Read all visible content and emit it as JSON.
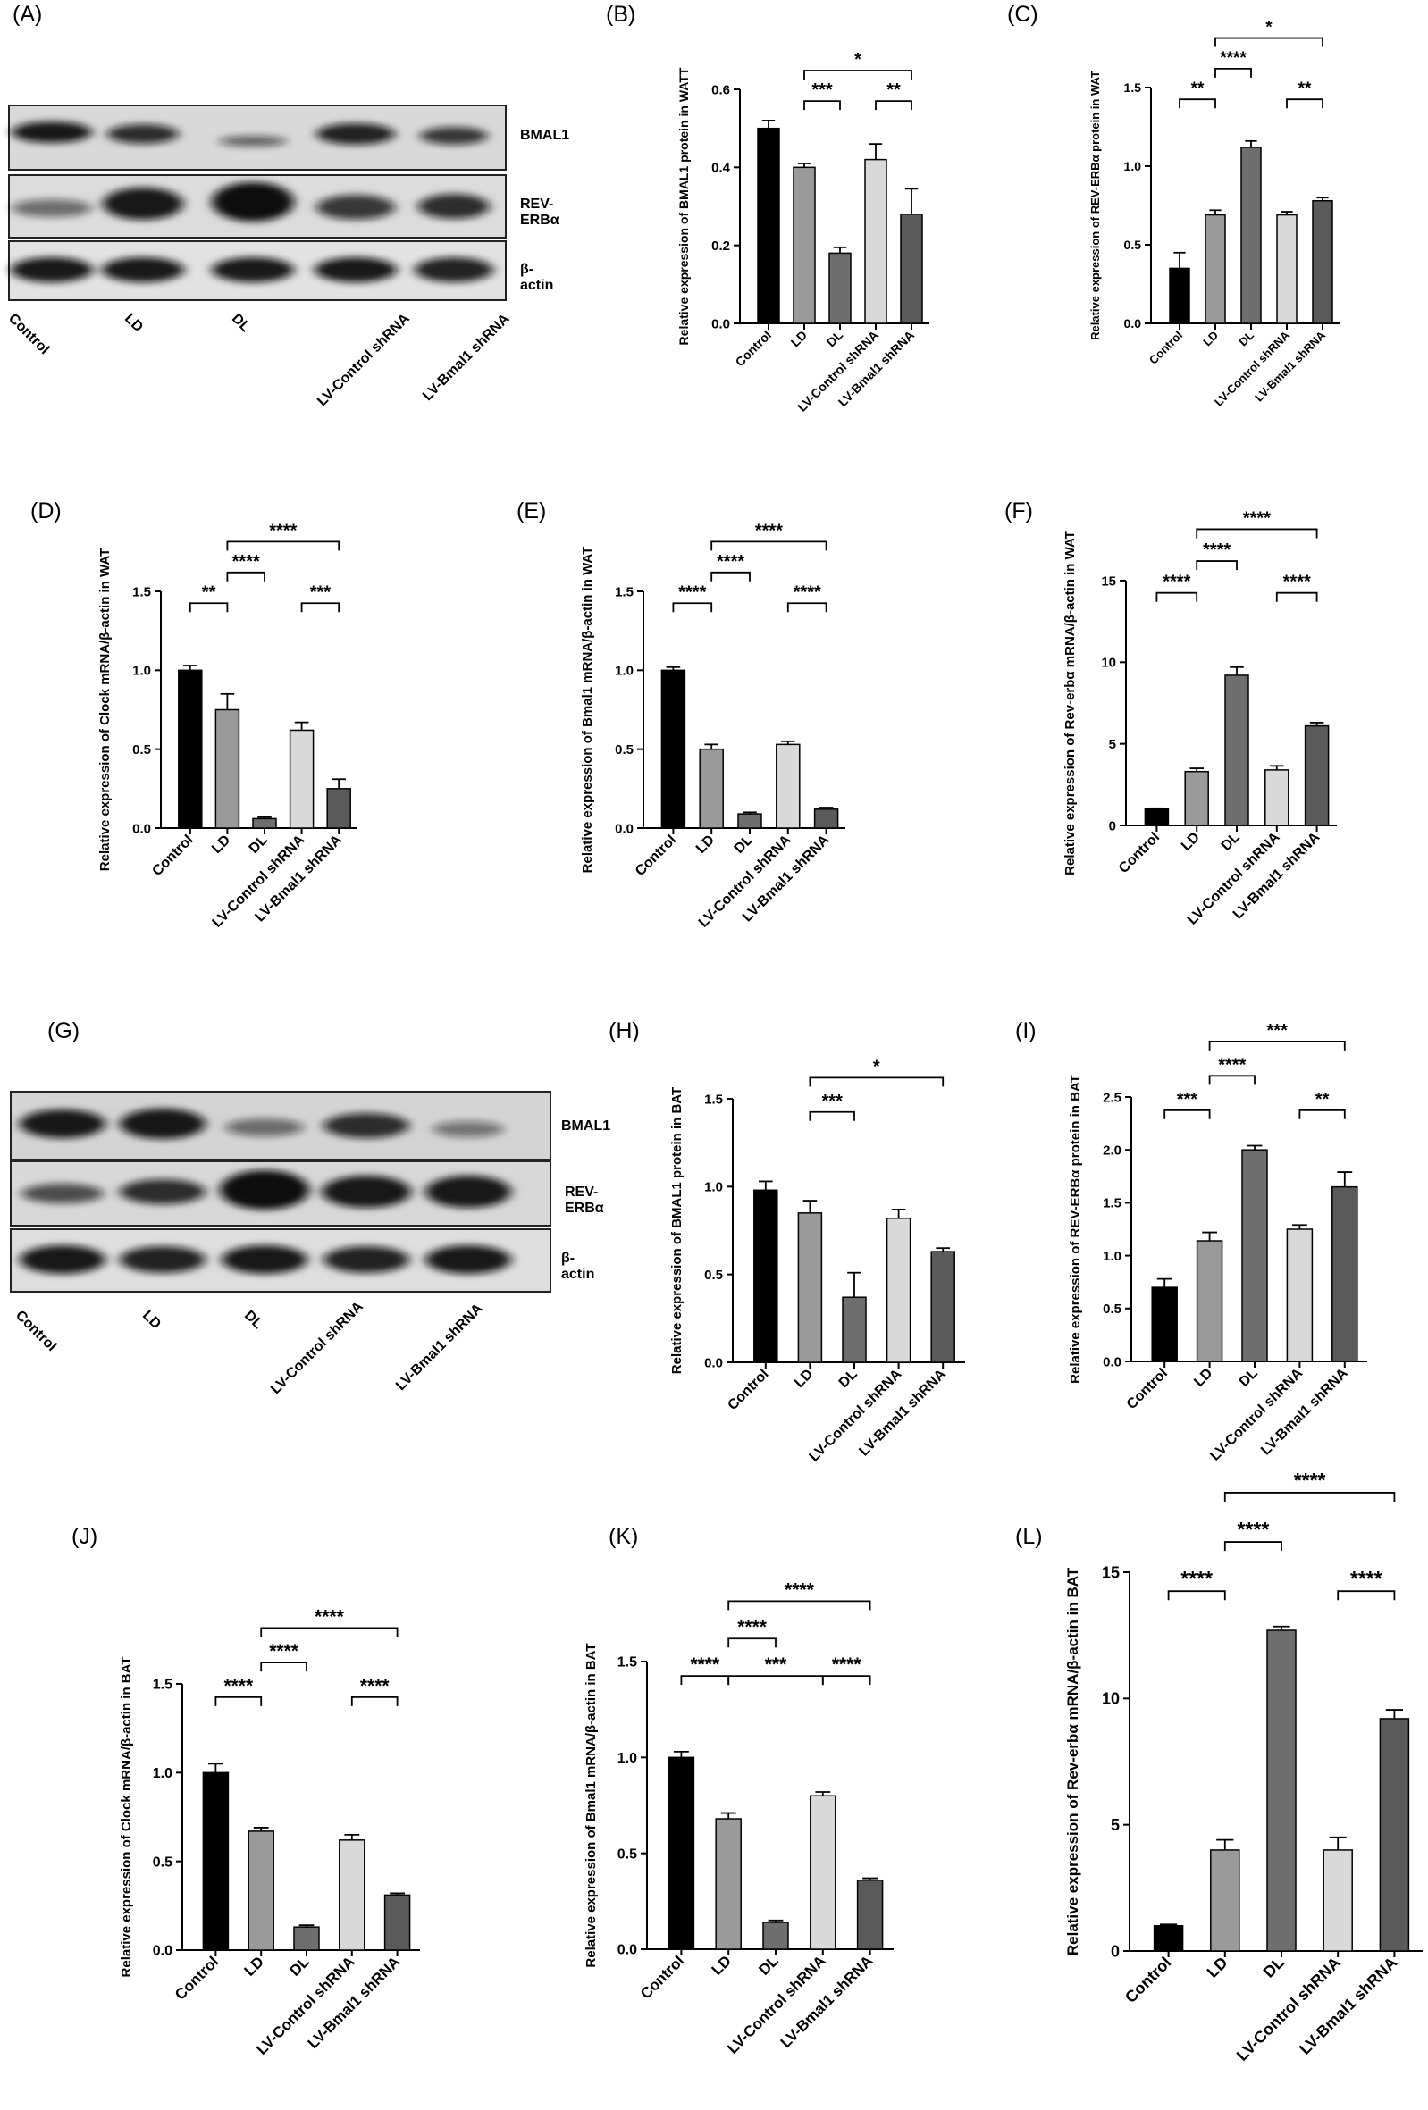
{
  "colors": {
    "control": "#000000",
    "ld": "#9a9a9a",
    "dl": "#6e6e6e",
    "lv_control": "#d9d9d9",
    "lv_bmal1": "#5a5a5a"
  },
  "panel_labels": [
    "(A)",
    "(B)",
    "(C)",
    "(D)",
    "(E)",
    "(F)",
    "(G)",
    "(H)",
    "(I)",
    "(J)",
    "(K)",
    "(L)"
  ],
  "blots": {
    "A": {
      "band_labels": [
        "BMAL1",
        "REV-ERBα",
        "β-actin"
      ],
      "lane_labels": [
        "Control",
        "LD",
        "DL",
        "LV-Control shRNA",
        "LV-Bmal1 shRNA"
      ]
    },
    "G": {
      "band_labels": [
        "BMAL1",
        "REV-ERBα",
        "β-actin"
      ],
      "lane_labels": [
        "Control",
        "LD",
        "DL",
        "LV-Control shRNA",
        "LV-Bmal1 shRNA"
      ]
    }
  },
  "chart_data": [
    {
      "panel": "B",
      "type": "bar",
      "categories": [
        "Control",
        "LD",
        "DL",
        "LV-Control shRNA",
        "LV-Bmal1 shRNA"
      ],
      "values": [
        0.5,
        0.4,
        0.18,
        0.42,
        0.28
      ],
      "errors": [
        0.02,
        0.01,
        0.015,
        0.04,
        0.065
      ],
      "ylabel": "Relative expression of BMAL1 protein in WATT",
      "ylim": [
        0,
        0.6
      ],
      "yticks": [
        "0.0",
        "0.2",
        "0.4",
        "0.6"
      ],
      "significance": [
        {
          "from": 1,
          "to": 2,
          "label": "***",
          "level": 1
        },
        {
          "from": 3,
          "to": 4,
          "label": "**",
          "level": 1
        },
        {
          "from": 1,
          "to": 4,
          "label": "*",
          "level": 2
        }
      ]
    },
    {
      "panel": "C",
      "type": "bar",
      "categories": [
        "Control",
        "LD",
        "DL",
        "LV-Control shRNA",
        "LV-Bmal1 shRNA"
      ],
      "values": [
        0.35,
        0.69,
        1.12,
        0.69,
        0.78
      ],
      "errors": [
        0.1,
        0.03,
        0.04,
        0.02,
        0.02
      ],
      "ylabel": "Relative expression of REV-ERBα protein in WAT",
      "ylim": [
        0,
        1.5
      ],
      "yticks": [
        "0.0",
        "0.5",
        "1.0",
        "1.5"
      ],
      "significance": [
        {
          "from": 0,
          "to": 1,
          "label": "**",
          "level": 1
        },
        {
          "from": 3,
          "to": 4,
          "label": "**",
          "level": 1
        },
        {
          "from": 1,
          "to": 2,
          "label": "****",
          "level": 2
        },
        {
          "from": 1,
          "to": 4,
          "label": "*",
          "level": 3
        }
      ]
    },
    {
      "panel": "D",
      "type": "bar",
      "categories": [
        "Control",
        "LD",
        "DL",
        "LV-Control shRNA",
        "LV-Bmal1 shRNA"
      ],
      "values": [
        1.0,
        0.75,
        0.06,
        0.62,
        0.25
      ],
      "errors": [
        0.03,
        0.1,
        0.01,
        0.05,
        0.06
      ],
      "ylabel": "Relative expression of Clock mRNA/β-actin in WAT",
      "ylim": [
        0,
        1.5
      ],
      "yticks": [
        "0.0",
        "0.5",
        "1.0",
        "1.5"
      ],
      "significance": [
        {
          "from": 0,
          "to": 1,
          "label": "**",
          "level": 1
        },
        {
          "from": 3,
          "to": 4,
          "label": "***",
          "level": 1
        },
        {
          "from": 1,
          "to": 2,
          "label": "****",
          "level": 2
        },
        {
          "from": 1,
          "to": 4,
          "label": "****",
          "level": 3
        }
      ]
    },
    {
      "panel": "E",
      "type": "bar",
      "categories": [
        "Control",
        "LD",
        "DL",
        "LV-Control shRNA",
        "LV-Bmal1 shRNA"
      ],
      "values": [
        1.0,
        0.5,
        0.09,
        0.53,
        0.12
      ],
      "errors": [
        0.02,
        0.03,
        0.01,
        0.02,
        0.01
      ],
      "ylabel": "Relative expression of Bmal1 mRNA/β-actin in WAT",
      "ylim": [
        0,
        1.5
      ],
      "yticks": [
        "0.0",
        "0.5",
        "1.0",
        "1.5"
      ],
      "significance": [
        {
          "from": 0,
          "to": 1,
          "label": "****",
          "level": 1
        },
        {
          "from": 3,
          "to": 4,
          "label": "****",
          "level": 1
        },
        {
          "from": 1,
          "to": 2,
          "label": "****",
          "level": 2
        },
        {
          "from": 1,
          "to": 4,
          "label": "****",
          "level": 3
        }
      ]
    },
    {
      "panel": "F",
      "type": "bar",
      "categories": [
        "Control",
        "LD",
        "DL",
        "LV-Control shRNA",
        "LV-Bmal1 shRNA"
      ],
      "values": [
        1.0,
        3.3,
        9.2,
        3.4,
        6.1
      ],
      "errors": [
        0.05,
        0.2,
        0.5,
        0.25,
        0.2
      ],
      "ylabel": "Relative expression of Rev-erbα mRNA/β-actin in WAT",
      "ylim": [
        0,
        15
      ],
      "yticks": [
        "0",
        "5",
        "10",
        "15"
      ],
      "significance": [
        {
          "from": 0,
          "to": 1,
          "label": "****",
          "level": 1
        },
        {
          "from": 3,
          "to": 4,
          "label": "****",
          "level": 1
        },
        {
          "from": 1,
          "to": 2,
          "label": "****",
          "level": 2
        },
        {
          "from": 1,
          "to": 4,
          "label": "****",
          "level": 3
        }
      ]
    },
    {
      "panel": "H",
      "type": "bar",
      "categories": [
        "Control",
        "LD",
        "DL",
        "LV-Control shRNA",
        "LV-Bmal1 shRNA"
      ],
      "values": [
        0.98,
        0.85,
        0.37,
        0.82,
        0.63
      ],
      "errors": [
        0.05,
        0.07,
        0.14,
        0.05,
        0.02
      ],
      "ylabel": "Relative expression of BMAL1 protein in BAT",
      "ylim": [
        0,
        1.5
      ],
      "yticks": [
        "0.0",
        "0.5",
        "1.0",
        "1.5"
      ],
      "significance": [
        {
          "from": 1,
          "to": 2,
          "label": "***",
          "level": 1
        },
        {
          "from": 1,
          "to": 4,
          "label": "*",
          "level": 2
        }
      ]
    },
    {
      "panel": "I",
      "type": "bar",
      "categories": [
        "Control",
        "LD",
        "DL",
        "LV-Control shRNA",
        "LV-Bmal1 shRNA"
      ],
      "values": [
        0.7,
        1.14,
        2.0,
        1.25,
        1.65
      ],
      "errors": [
        0.08,
        0.08,
        0.04,
        0.04,
        0.14
      ],
      "ylabel": "Relative expression of REV-ERBα protein in BAT",
      "ylim": [
        0,
        2.5
      ],
      "yticks": [
        "0.0",
        "0.5",
        "1.0",
        "1.5",
        "2.0",
        "2.5"
      ],
      "significance": [
        {
          "from": 0,
          "to": 1,
          "label": "***",
          "level": 1
        },
        {
          "from": 3,
          "to": 4,
          "label": "**",
          "level": 1
        },
        {
          "from": 1,
          "to": 2,
          "label": "****",
          "level": 2
        },
        {
          "from": 1,
          "to": 4,
          "label": "***",
          "level": 3
        }
      ]
    },
    {
      "panel": "J",
      "type": "bar",
      "categories": [
        "Control",
        "LD",
        "DL",
        "LV-Control shRNA",
        "LV-Bmal1 shRNA"
      ],
      "values": [
        1.0,
        0.67,
        0.13,
        0.62,
        0.31
      ],
      "errors": [
        0.05,
        0.02,
        0.01,
        0.03,
        0.01
      ],
      "ylabel": "Relative expression of Clock mRNA/β-actin in BAT",
      "ylim": [
        0,
        1.5
      ],
      "yticks": [
        "0.0",
        "0.5",
        "1.0",
        "1.5"
      ],
      "significance": [
        {
          "from": 0,
          "to": 1,
          "label": "****",
          "level": 1
        },
        {
          "from": 3,
          "to": 4,
          "label": "****",
          "level": 1
        },
        {
          "from": 1,
          "to": 2,
          "label": "****",
          "level": 2
        },
        {
          "from": 1,
          "to": 4,
          "label": "****",
          "level": 3
        }
      ]
    },
    {
      "panel": "K",
      "type": "bar",
      "categories": [
        "Control",
        "LD",
        "DL",
        "LV-Control shRNA",
        "LV-Bmal1 shRNA"
      ],
      "values": [
        1.0,
        0.68,
        0.14,
        0.8,
        0.36
      ],
      "errors": [
        0.03,
        0.03,
        0.01,
        0.02,
        0.01
      ],
      "ylabel": "Relative expression of Bmal1 mRNA/β-actin in BAT",
      "ylim": [
        0,
        1.5
      ],
      "yticks": [
        "0.0",
        "0.5",
        "1.0",
        "1.5"
      ],
      "significance": [
        {
          "from": 0,
          "to": 1,
          "label": "****",
          "level": 1
        },
        {
          "from": 1,
          "to": 3,
          "label": "***",
          "level": 1
        },
        {
          "from": 3,
          "to": 4,
          "label": "****",
          "level": 1
        },
        {
          "from": 1,
          "to": 2,
          "label": "****",
          "level": 2
        },
        {
          "from": 1,
          "to": 4,
          "label": "****",
          "level": 3
        }
      ]
    },
    {
      "panel": "L",
      "type": "bar",
      "categories": [
        "Control",
        "LD",
        "DL",
        "LV-Control shRNA",
        "LV-Bmal1 shRNA"
      ],
      "values": [
        1.0,
        4.0,
        12.7,
        4.0,
        9.2
      ],
      "errors": [
        0.05,
        0.4,
        0.15,
        0.5,
        0.35
      ],
      "ylabel": "Relative expression of Rev-erbα mRNA/β-actin in BAT",
      "ylim": [
        0,
        15
      ],
      "yticks": [
        "0",
        "5",
        "10",
        "15"
      ],
      "significance": [
        {
          "from": 0,
          "to": 1,
          "label": "****",
          "level": 1
        },
        {
          "from": 3,
          "to": 4,
          "label": "****",
          "level": 1
        },
        {
          "from": 1,
          "to": 2,
          "label": "****",
          "level": 2
        },
        {
          "from": 1,
          "to": 4,
          "label": "****",
          "level": 3
        }
      ]
    }
  ]
}
